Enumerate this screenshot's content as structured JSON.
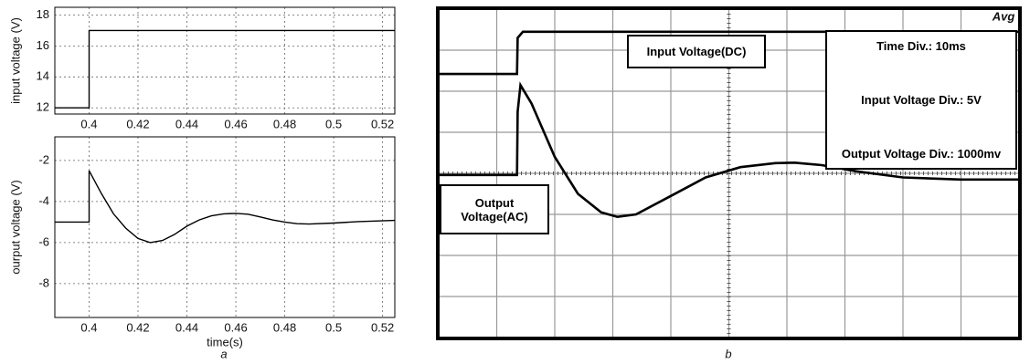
{
  "chart_data": [
    {
      "type": "line",
      "ylabel": "input voltage (V)",
      "xlim": [
        0.386,
        0.525
      ],
      "xticks": [
        0.4,
        0.42,
        0.44,
        0.46,
        0.48,
        0.5,
        0.52
      ],
      "ylim": [
        11.6,
        18.5
      ],
      "yticks": [
        12,
        14,
        16,
        18
      ],
      "grid": true,
      "series": [
        {
          "color": "#000000",
          "x": [
            0.386,
            0.4,
            0.4,
            0.525
          ],
          "values": [
            12,
            12,
            17,
            17
          ]
        }
      ]
    },
    {
      "type": "line",
      "ylabel": "ourput voltage (V)",
      "xlabel": "time(s)",
      "caption": "a",
      "xlim": [
        0.386,
        0.525
      ],
      "xticks": [
        0.4,
        0.42,
        0.44,
        0.46,
        0.48,
        0.5,
        0.52
      ],
      "ylim": [
        -9.65,
        -0.85
      ],
      "yticks": [
        -8,
        -6,
        -4,
        -2
      ],
      "grid": true,
      "series": [
        {
          "color": "#000000",
          "x": [
            0.386,
            0.4,
            0.4,
            0.405,
            0.41,
            0.415,
            0.42,
            0.425,
            0.43,
            0.435,
            0.44,
            0.445,
            0.45,
            0.455,
            0.46,
            0.465,
            0.47,
            0.475,
            0.48,
            0.485,
            0.49,
            0.5,
            0.51,
            0.525
          ],
          "values": [
            -5,
            -5,
            -2.5,
            -3.6,
            -4.6,
            -5.3,
            -5.8,
            -6,
            -5.9,
            -5.6,
            -5.2,
            -4.9,
            -4.7,
            -4.6,
            -4.58,
            -4.62,
            -4.75,
            -4.9,
            -5.0,
            -5.08,
            -5.1,
            -5.05,
            -4.98,
            -4.92
          ]
        }
      ]
    },
    {
      "type": "scope",
      "caption": "b",
      "mode": "Avg",
      "xlim": [
        0,
        10
      ],
      "ylim": [
        0,
        8
      ],
      "grid_divisions": [
        10,
        8
      ],
      "annotations": [
        "Time Div.: 10ms",
        "Input Voltage Div.: 5V",
        "Output Voltage Div.: 1000mv"
      ],
      "series": [
        {
          "name": "Input Voltage(DC)",
          "color": "#000000",
          "x": [
            0,
            1.35,
            1.36,
            1.45,
            10
          ],
          "values": [
            6.42,
            6.42,
            7.3,
            7.45,
            7.45
          ]
        },
        {
          "name": "Output Voltage(AC)",
          "color": "#000000",
          "x": [
            0,
            1.35,
            1.36,
            1.41,
            1.6,
            2.0,
            2.4,
            2.8,
            3.08,
            3.4,
            4.0,
            4.6,
            5.2,
            5.8,
            6.13,
            6.6,
            7.2,
            8.0,
            9.0,
            10
          ],
          "values": [
            3.96,
            3.96,
            5.5,
            6.15,
            5.7,
            4.4,
            3.5,
            3.05,
            2.94,
            3.0,
            3.45,
            3.9,
            4.15,
            4.25,
            4.26,
            4.2,
            4.05,
            3.9,
            3.85,
            3.85
          ]
        }
      ]
    }
  ]
}
